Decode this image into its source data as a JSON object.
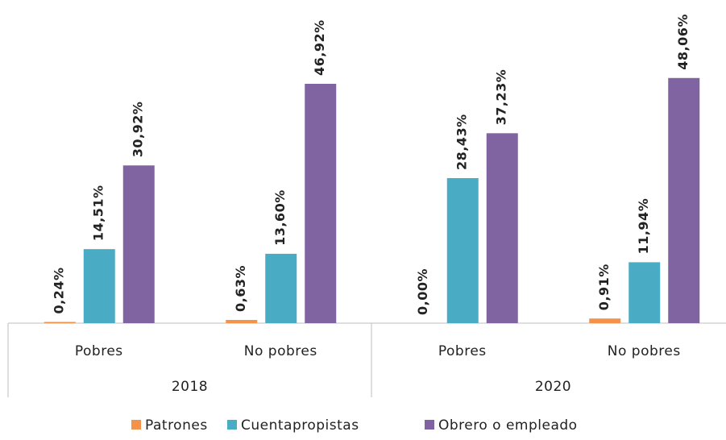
{
  "chart_data": {
    "type": "bar",
    "categories": [
      "Pobres",
      "No pobres",
      "Pobres",
      "No pobres"
    ],
    "category_groups": [
      "2018",
      "2020"
    ],
    "series": [
      {
        "name": "Patrones",
        "color": "#f5924a",
        "values": [
          0.24,
          0.63,
          0.0,
          0.91
        ],
        "value_labels": [
          "0,24%",
          "0,63%",
          "0,00%",
          "0,91%"
        ]
      },
      {
        "name": "Cuentapropistas",
        "color": "#4aacc4",
        "values": [
          14.51,
          13.6,
          28.43,
          11.94
        ],
        "value_labels": [
          "14,51%",
          "13,60%",
          "28,43%",
          "11,94%"
        ]
      },
      {
        "name": "Obrero o empleado",
        "color": "#8064a2",
        "values": [
          30.92,
          46.92,
          37.23,
          48.06
        ],
        "value_labels": [
          "30,92%",
          "46,92%",
          "37,23%",
          "48,06%"
        ]
      }
    ]
  }
}
